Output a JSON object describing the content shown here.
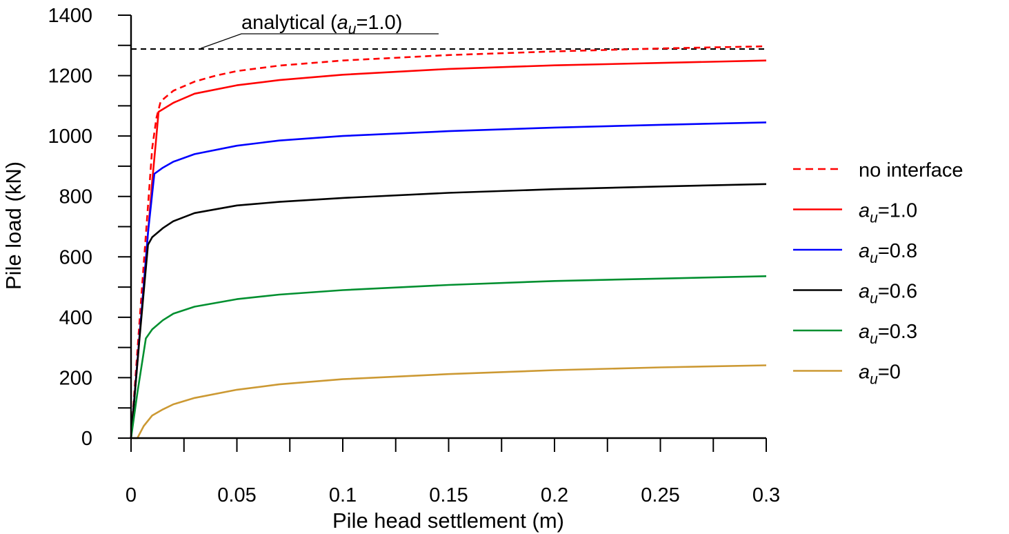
{
  "chart_data": {
    "type": "line",
    "xlabel": "Pile head settlement (m)",
    "ylabel": "Pile load (kN)",
    "xlim": [
      0,
      0.3
    ],
    "ylim": [
      0,
      1400
    ],
    "x_ticks": [
      0,
      0.05,
      0.1,
      0.15,
      0.2,
      0.25,
      0.3
    ],
    "x_tick_labels": [
      "0",
      "0.05",
      "0.1",
      "0.15",
      "0.2",
      "0.25",
      "0.3"
    ],
    "y_ticks": [
      0,
      200,
      400,
      600,
      800,
      1000,
      1200,
      1400
    ],
    "y_tick_labels": [
      "0",
      "200",
      "400",
      "600",
      "800",
      "1000",
      "1200",
      "1400"
    ],
    "grid": false,
    "legend_position": "right",
    "reference_line": {
      "value": 1288,
      "label_prefix": "analytical (",
      "label_var": "a",
      "label_sub": "u",
      "label_suffix": "=1.0)",
      "color": "#000000",
      "dash": "dashed"
    },
    "series": [
      {
        "name": "no interface",
        "label_var": "",
        "label_sub": "",
        "label_rest": "no interface",
        "color": "#ff0000",
        "dash": "dashed",
        "x": [
          0,
          0.005,
          0.01,
          0.012,
          0.014,
          0.02,
          0.03,
          0.04,
          0.05,
          0.07,
          0.1,
          0.15,
          0.2,
          0.25,
          0.3
        ],
        "y": [
          0,
          480,
          960,
          1060,
          1115,
          1150,
          1180,
          1200,
          1215,
          1233,
          1250,
          1268,
          1280,
          1290,
          1297
        ]
      },
      {
        "name": "a_u=1.0",
        "label_var": "a",
        "label_sub": "u",
        "label_rest": "=1.0",
        "color": "#ff0000",
        "dash": "solid",
        "x": [
          0,
          0.005,
          0.01,
          0.012,
          0.013,
          0.02,
          0.03,
          0.05,
          0.07,
          0.1,
          0.15,
          0.2,
          0.25,
          0.3
        ],
        "y": [
          0,
          420,
          850,
          1000,
          1080,
          1110,
          1140,
          1168,
          1185,
          1203,
          1222,
          1234,
          1242,
          1250
        ]
      },
      {
        "name": "a_u=0.8",
        "label_var": "a",
        "label_sub": "u",
        "label_rest": "=0.8",
        "color": "#0000ff",
        "dash": "solid",
        "x": [
          0,
          0.005,
          0.008,
          0.011,
          0.015,
          0.02,
          0.03,
          0.05,
          0.07,
          0.1,
          0.15,
          0.2,
          0.25,
          0.3
        ],
        "y": [
          0,
          420,
          680,
          875,
          895,
          915,
          940,
          968,
          985,
          1000,
          1016,
          1028,
          1037,
          1045
        ]
      },
      {
        "name": "a_u=0.6",
        "label_var": "a",
        "label_sub": "u",
        "label_rest": "=0.6",
        "color": "#000000",
        "dash": "solid",
        "x": [
          0,
          0.004,
          0.008,
          0.01,
          0.015,
          0.02,
          0.03,
          0.05,
          0.07,
          0.1,
          0.15,
          0.2,
          0.25,
          0.3
        ],
        "y": [
          0,
          330,
          640,
          665,
          695,
          718,
          745,
          770,
          782,
          795,
          812,
          824,
          833,
          841
        ]
      },
      {
        "name": "a_u=0.3",
        "label_var": "a",
        "label_sub": "u",
        "label_rest": "=0.3",
        "color": "#008f2f",
        "dash": "solid",
        "x": [
          0,
          0.003,
          0.007,
          0.01,
          0.015,
          0.02,
          0.03,
          0.05,
          0.07,
          0.1,
          0.15,
          0.2,
          0.25,
          0.3
        ],
        "y": [
          0,
          150,
          330,
          360,
          390,
          412,
          435,
          460,
          475,
          490,
          507,
          520,
          528,
          536
        ]
      },
      {
        "name": "a_u=0",
        "label_var": "a",
        "label_sub": "u",
        "label_rest": "=0",
        "color": "#cc9933",
        "dash": "solid",
        "x": [
          0,
          0.003,
          0.006,
          0.01,
          0.015,
          0.02,
          0.03,
          0.05,
          0.07,
          0.1,
          0.15,
          0.2,
          0.25,
          0.3
        ],
        "y": [
          0,
          0,
          40,
          75,
          95,
          112,
          133,
          160,
          178,
          195,
          212,
          225,
          234,
          241
        ]
      }
    ]
  }
}
